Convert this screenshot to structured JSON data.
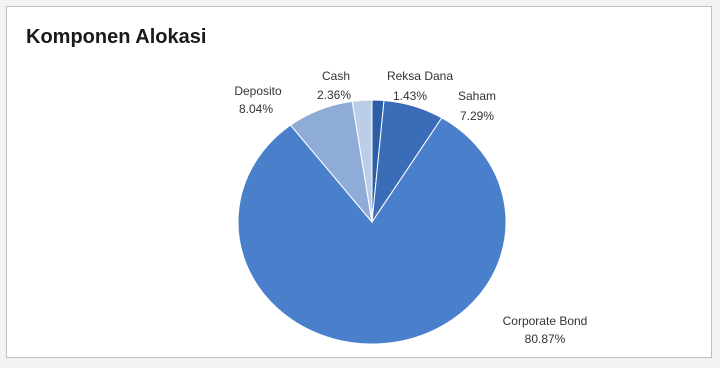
{
  "chart_data": {
    "type": "pie",
    "title": "Komponen Alokasi",
    "slices": [
      {
        "name": "Reksa Dana",
        "value": 1.43,
        "label": "1.43%",
        "color": "#2c5ea8"
      },
      {
        "name": "Saham",
        "value": 7.29,
        "label": "7.29%",
        "color": "#3a6cb8"
      },
      {
        "name": "Corporate Bond",
        "value": 80.87,
        "label": "80.87%",
        "color": "#4a7fcb"
      },
      {
        "name": "Deposito",
        "value": 8.04,
        "label": "8.04%",
        "color": "#8facd8"
      },
      {
        "name": "Cash",
        "value": 2.36,
        "label": "2.36%",
        "color": "#bccde8"
      }
    ],
    "start_angle_deg": 0,
    "direction": "clockwise",
    "legend": "none",
    "data_labels": "outside"
  }
}
